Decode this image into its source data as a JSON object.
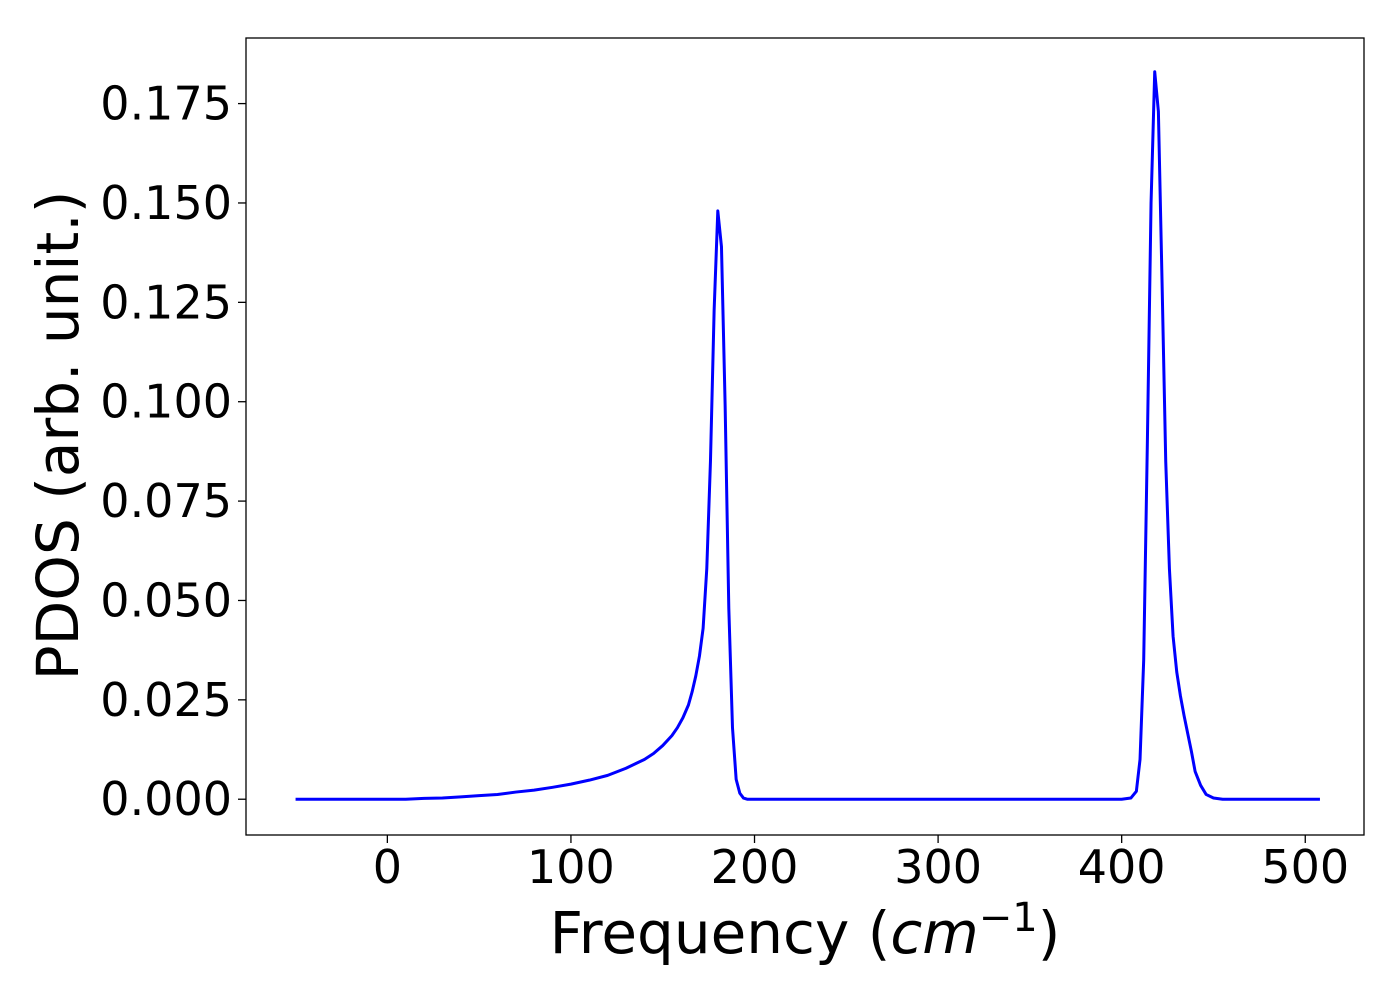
{
  "chart_data": {
    "type": "line",
    "title": "",
    "xlabel": "Frequency (cm⁻¹)",
    "xlabel_parts": {
      "prefix": "Frequency (",
      "base": "cm",
      "sup": "−1",
      "suffix": ")"
    },
    "ylabel": "PDOS (arb. unit.)",
    "xlim": [
      -77,
      532
    ],
    "ylim": [
      -0.009,
      0.1915
    ],
    "xticks": [
      0,
      100,
      200,
      300,
      400,
      500
    ],
    "xtick_labels": [
      "0",
      "100",
      "200",
      "300",
      "400",
      "500"
    ],
    "yticks": [
      0.0,
      0.025,
      0.05,
      0.075,
      0.1,
      0.125,
      0.15,
      0.175
    ],
    "ytick_labels": [
      "0.000",
      "0.025",
      "0.050",
      "0.075",
      "0.100",
      "0.125",
      "0.150",
      "0.175"
    ],
    "grid": false,
    "legend": "none",
    "series": [
      {
        "color": "#0000ff",
        "x": [
          -50,
          -20,
          0,
          10,
          20,
          30,
          40,
          50,
          60,
          70,
          80,
          90,
          100,
          110,
          120,
          130,
          140,
          145,
          150,
          155,
          158,
          161,
          164,
          166,
          168,
          170,
          172,
          174,
          176,
          178,
          180,
          182,
          184,
          186,
          188,
          190,
          192,
          194,
          196,
          198,
          200,
          210,
          300,
          400,
          405,
          408,
          410,
          412,
          414,
          416,
          418,
          420,
          422,
          424,
          426,
          428,
          430,
          432,
          434,
          436,
          438,
          440,
          443,
          446,
          450,
          455,
          460,
          463,
          466,
          468,
          470,
          480,
          500,
          508
        ],
        "y": [
          0.0,
          0.0,
          0.0,
          0.0,
          0.0002,
          0.0003,
          0.0006,
          0.0009,
          0.0012,
          0.0018,
          0.0023,
          0.003,
          0.0038,
          0.0048,
          0.006,
          0.0078,
          0.01,
          0.0115,
          0.0135,
          0.016,
          0.018,
          0.0205,
          0.0237,
          0.027,
          0.031,
          0.036,
          0.043,
          0.058,
          0.085,
          0.123,
          0.148,
          0.139,
          0.099,
          0.048,
          0.018,
          0.005,
          0.0015,
          0.0003,
          0.0,
          0.0,
          0.0,
          0.0,
          0.0,
          0.0,
          0.0003,
          0.002,
          0.01,
          0.035,
          0.09,
          0.15,
          0.183,
          0.173,
          0.13,
          0.085,
          0.058,
          0.041,
          0.032,
          0.026,
          0.021,
          0.0165,
          0.012,
          0.007,
          0.0035,
          0.0012,
          0.0003,
          0.0,
          0.0,
          0.0,
          0.0,
          0.0,
          0.0,
          0.0,
          0.0,
          0.0
        ]
      }
    ]
  }
}
